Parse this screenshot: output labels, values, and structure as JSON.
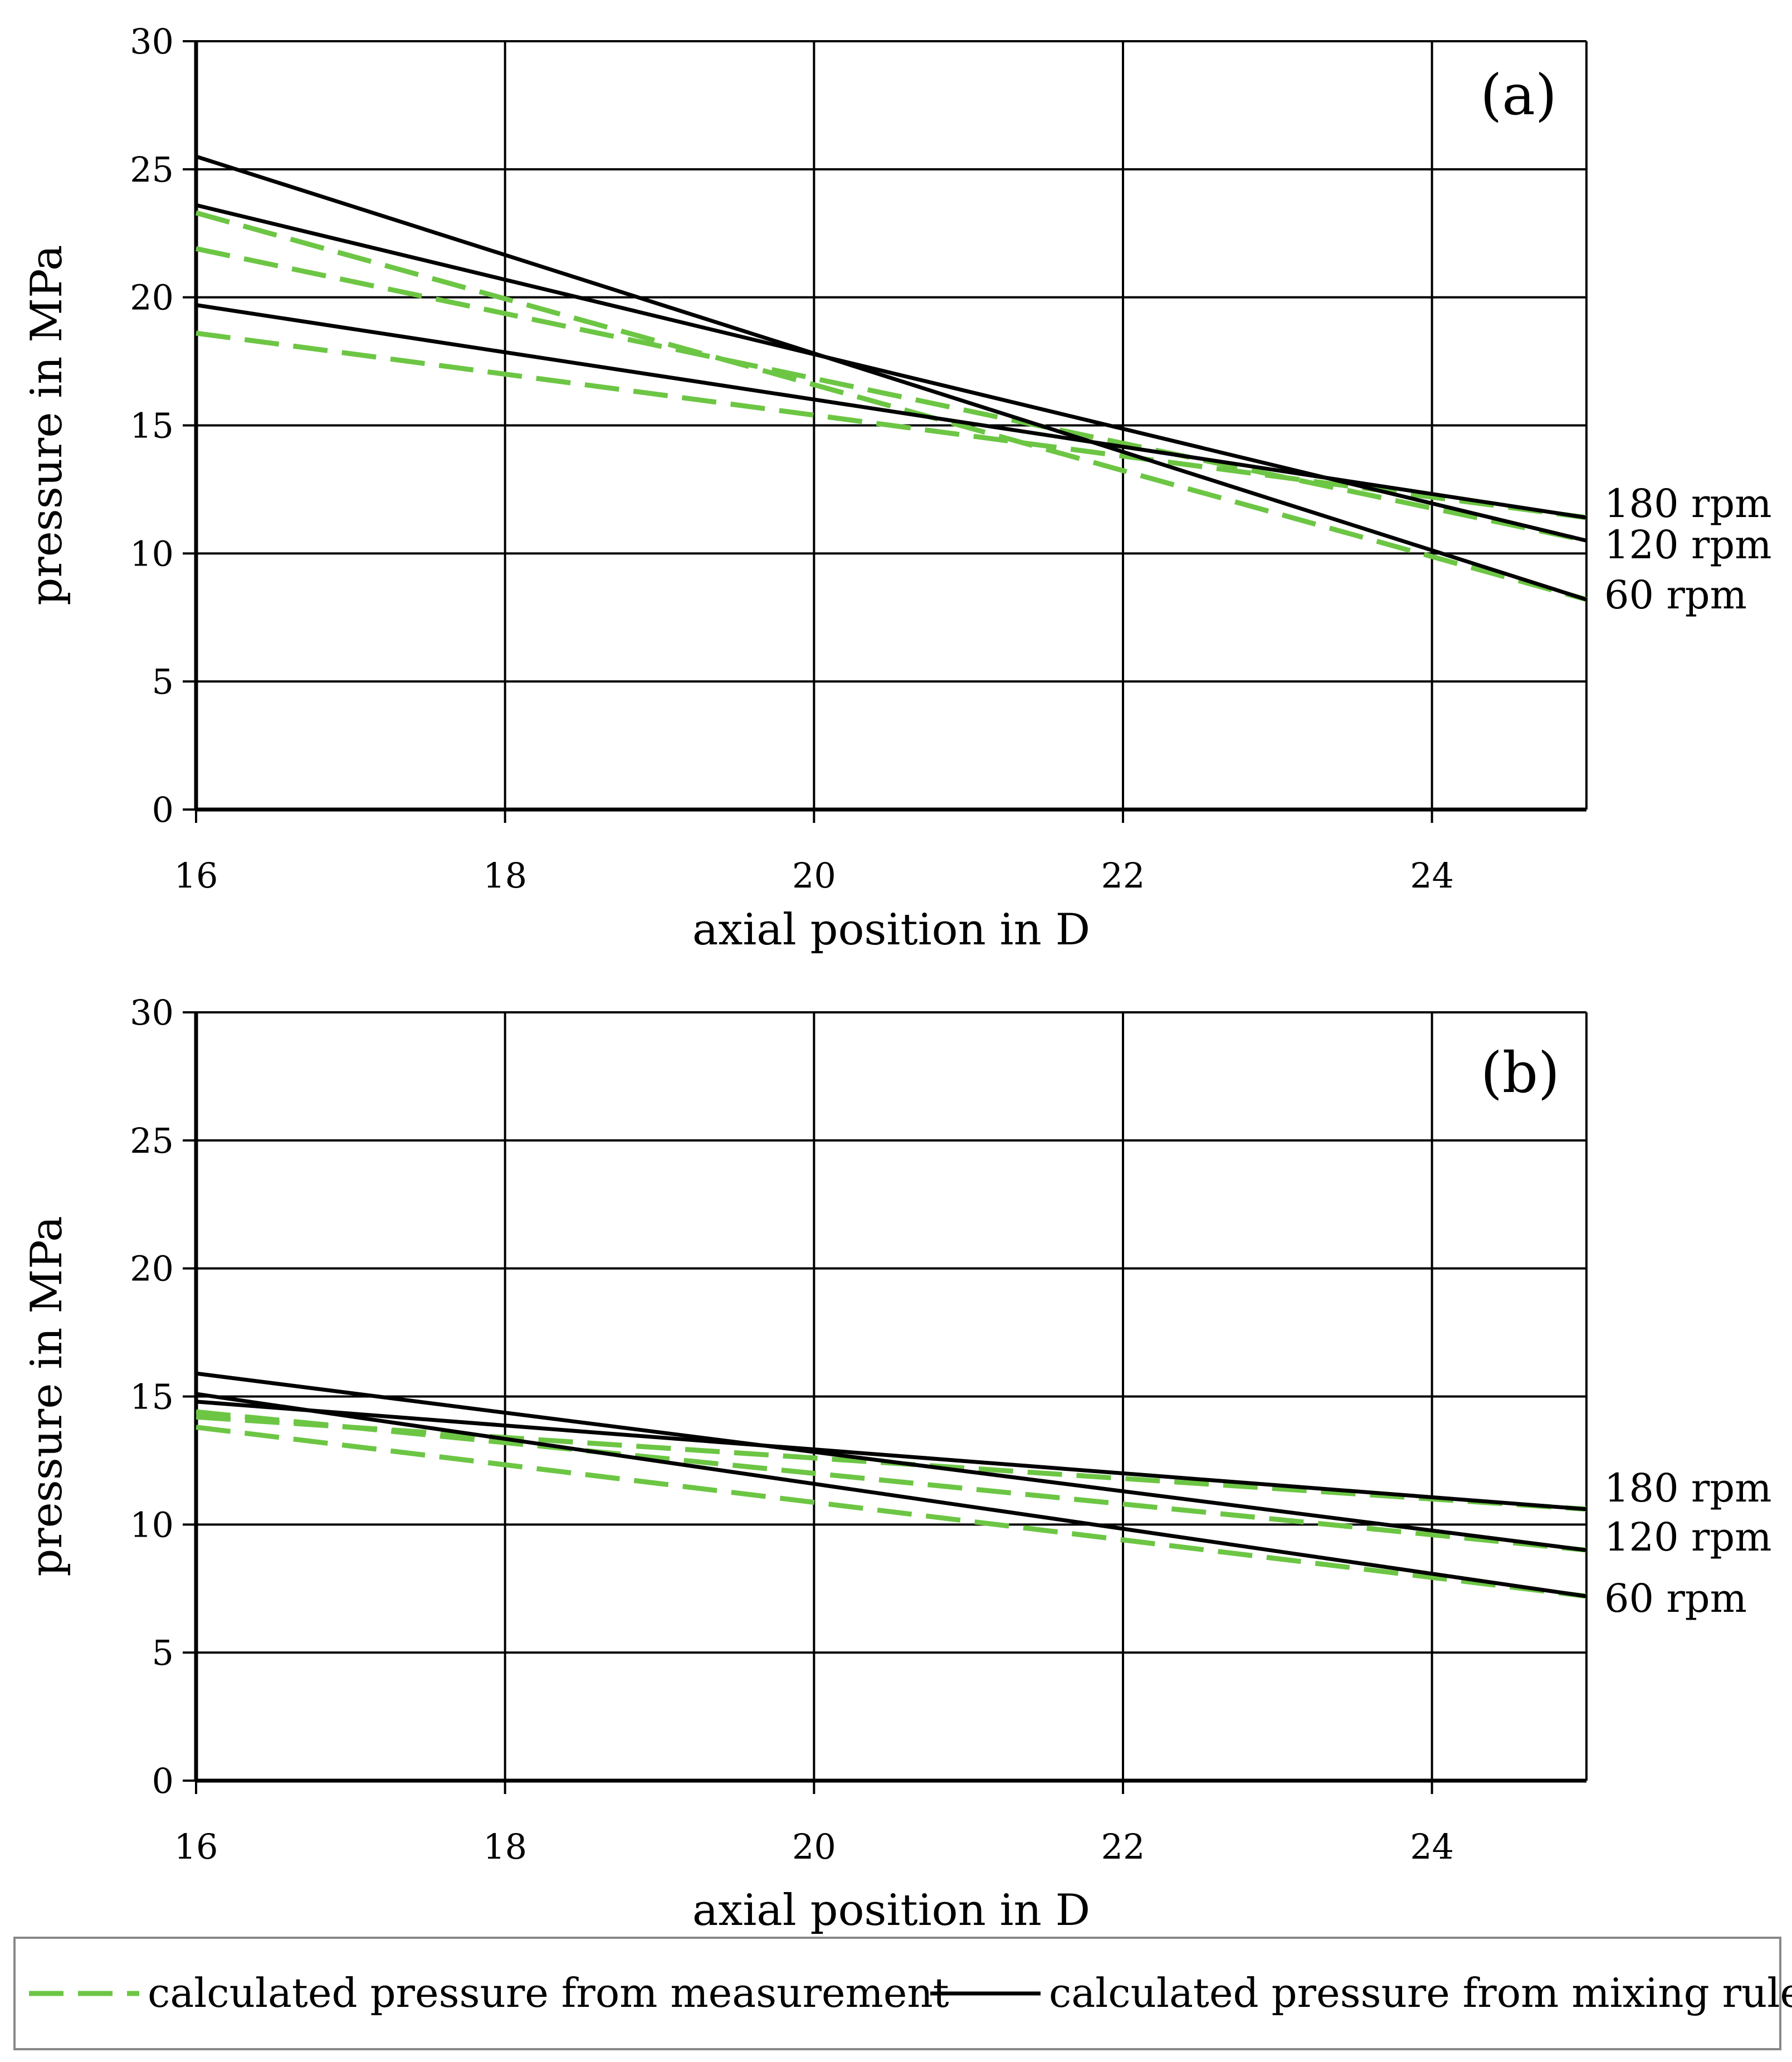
{
  "colors": {
    "measurement": "#6cc644",
    "mixing_rule": "#000000",
    "grid": "#000000",
    "legend_border": "#888888"
  },
  "legend": {
    "measurement_label": "calculated pressure from measurement",
    "mixing_rule_label": "calculated pressure from mixing rule"
  },
  "chart_data": [
    {
      "type": "line",
      "panel_label": "(a)",
      "xlabel": "axial position in D",
      "ylabel": "pressure in MPa",
      "xlim": [
        16,
        25
      ],
      "ylim": [
        0,
        30
      ],
      "xticks": [
        16,
        18,
        20,
        22,
        24
      ],
      "yticks": [
        0,
        5,
        10,
        15,
        20,
        25,
        30
      ],
      "grid": true,
      "rpm_labels": [
        "180 rpm",
        "120 rpm",
        "60 rpm"
      ],
      "series": [
        {
          "name": "calculated pressure from mixing rule, 60 rpm",
          "style": "solid",
          "x": [
            16,
            25
          ],
          "y": [
            25.5,
            8.2
          ]
        },
        {
          "name": "calculated pressure from mixing rule, 120 rpm",
          "style": "solid",
          "x": [
            16,
            25
          ],
          "y": [
            23.6,
            10.5
          ]
        },
        {
          "name": "calculated pressure from mixing rule, 180 rpm",
          "style": "solid",
          "x": [
            16,
            25
          ],
          "y": [
            19.7,
            11.4
          ]
        },
        {
          "name": "calculated pressure from measurement, 60 rpm",
          "style": "dashed",
          "x": [
            16,
            25
          ],
          "y": [
            23.3,
            8.2
          ]
        },
        {
          "name": "calculated pressure from measurement, 120 rpm",
          "style": "dashed",
          "x": [
            16,
            25
          ],
          "y": [
            21.9,
            10.5
          ]
        },
        {
          "name": "calculated pressure from measurement, 180 rpm",
          "style": "dashed",
          "x": [
            16,
            25
          ],
          "y": [
            18.6,
            11.4
          ]
        }
      ]
    },
    {
      "type": "line",
      "panel_label": "(b)",
      "xlabel": "axial position in D",
      "ylabel": "pressure in MPa",
      "xlim": [
        16,
        25
      ],
      "ylim": [
        0,
        30
      ],
      "xticks": [
        16,
        18,
        20,
        22,
        24
      ],
      "yticks": [
        0,
        5,
        10,
        15,
        20,
        25,
        30
      ],
      "grid": true,
      "rpm_labels": [
        "180 rpm",
        "120 rpm",
        "60 rpm"
      ],
      "series": [
        {
          "name": "calculated pressure from mixing rule, 60 rpm",
          "style": "solid",
          "x": [
            16,
            25
          ],
          "y": [
            15.1,
            7.2
          ]
        },
        {
          "name": "calculated pressure from mixing rule, 120 rpm",
          "style": "solid",
          "x": [
            16,
            25
          ],
          "y": [
            15.9,
            9.0
          ]
        },
        {
          "name": "calculated pressure from mixing rule, 180 rpm",
          "style": "solid",
          "x": [
            16,
            25
          ],
          "y": [
            14.8,
            10.6
          ]
        },
        {
          "name": "calculated pressure from measurement, 60 rpm",
          "style": "dashed",
          "x": [
            16,
            25
          ],
          "y": [
            13.8,
            7.2
          ]
        },
        {
          "name": "calculated pressure from measurement, 120 rpm",
          "style": "dashed",
          "x": [
            16,
            25
          ],
          "y": [
            14.4,
            9.0
          ]
        },
        {
          "name": "calculated pressure from measurement, 180 rpm",
          "style": "dashed",
          "x": [
            16,
            25
          ],
          "y": [
            14.2,
            10.6
          ]
        }
      ]
    }
  ]
}
